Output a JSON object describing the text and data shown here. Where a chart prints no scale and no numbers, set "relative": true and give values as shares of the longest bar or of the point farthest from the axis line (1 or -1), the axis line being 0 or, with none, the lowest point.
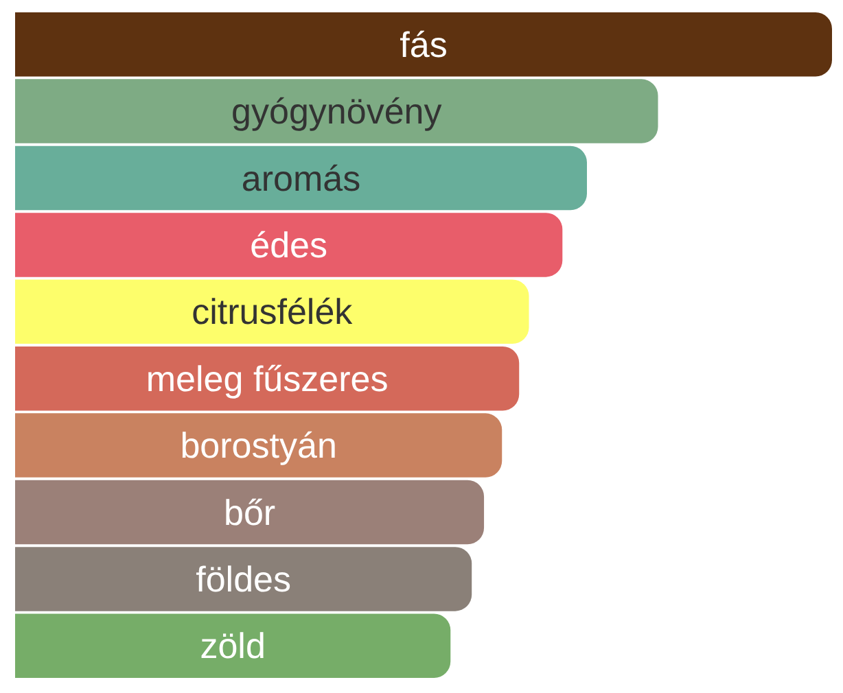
{
  "chart_data": {
    "type": "bar",
    "orientation": "horizontal",
    "relative": true,
    "categories": [
      "fás",
      "gyógynövény",
      "aromás",
      "édes",
      "citrusfélék",
      "meleg fűszeres",
      "borostyán",
      "bőr",
      "földes",
      "zöld"
    ],
    "values": [
      1,
      0.787,
      0.7,
      0.67,
      0.629,
      0.617,
      0.596,
      0.574,
      0.559,
      0.533
    ],
    "colors": [
      "#5e3210",
      "#7eab84",
      "#68ae9a",
      "#e85d6a",
      "#fdfe6b",
      "#d4695a",
      "#c98260",
      "#9b8078",
      "#8a8078",
      "#76ad68"
    ]
  }
}
